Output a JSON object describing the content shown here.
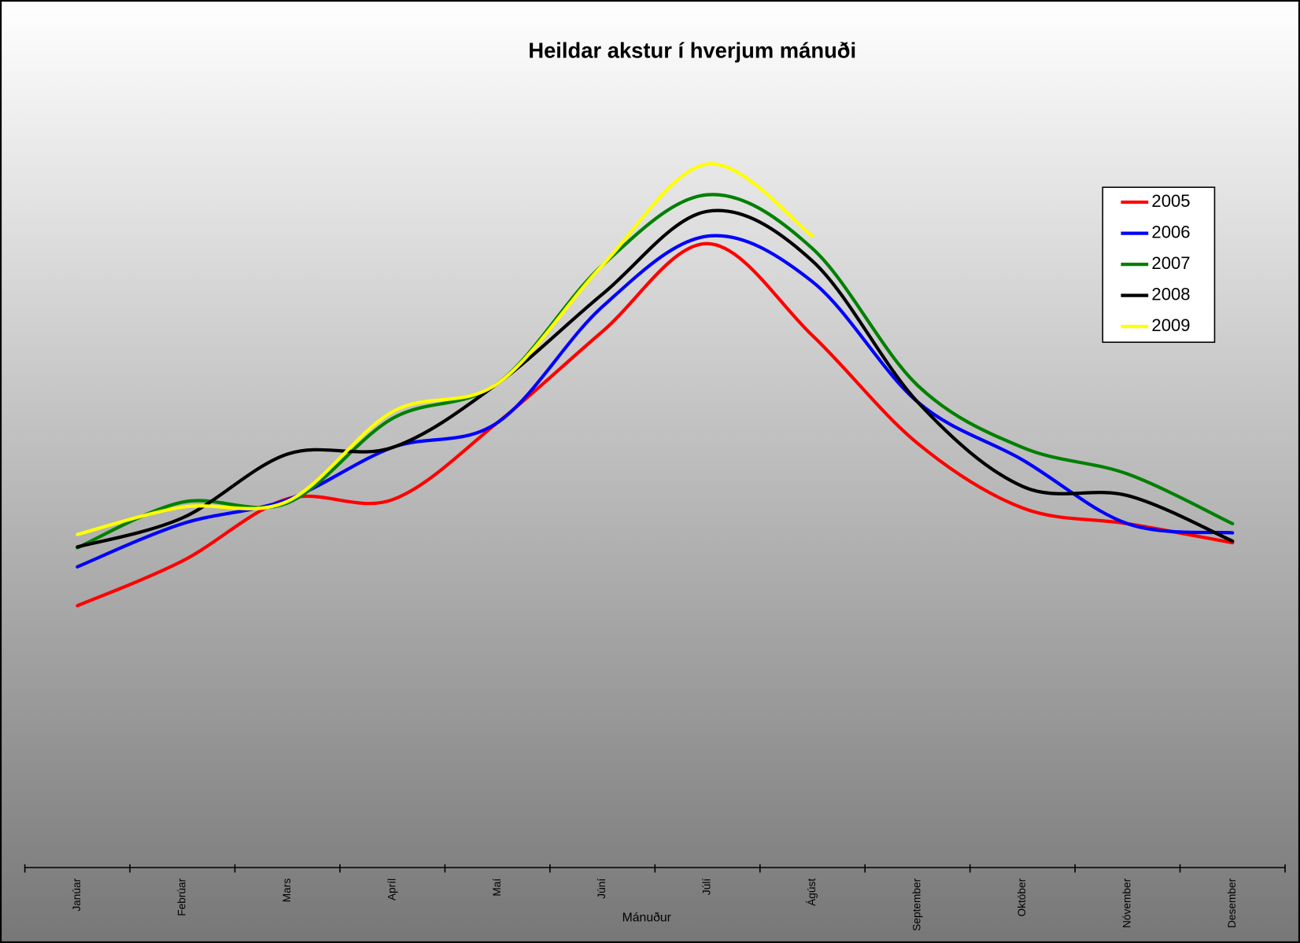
{
  "chart_data": {
    "type": "line",
    "title": "Heildar akstur í hverjum mánuði",
    "x_label": "Mánuður",
    "categories": [
      "Janúar",
      "Febrúar",
      "Mars",
      "Apríl",
      "Maí",
      "Júní",
      "Júlí",
      "Ágúst",
      "September",
      "Október",
      "Nóvember",
      "Desember"
    ],
    "series": [
      {
        "name": "2005",
        "color": "#ff0000",
        "values": [
          316,
          370,
          445,
          444,
          537,
          647,
          753,
          642,
          512,
          434,
          415,
          392
        ]
      },
      {
        "name": "2006",
        "color": "#0000ff",
        "values": [
          363,
          415,
          444,
          507,
          537,
          677,
          762,
          707,
          562,
          492,
          415,
          404
        ]
      },
      {
        "name": "2007",
        "color": "#008000",
        "values": [
          386,
          441,
          440,
          542,
          584,
          727,
          812,
          747,
          582,
          507,
          475,
          415
        ]
      },
      {
        "name": "2008",
        "color": "#000000",
        "values": [
          387,
          422,
          499,
          507,
          584,
          692,
          792,
          732,
          562,
          460,
          449,
          394
        ]
      },
      {
        "name": "2009",
        "color": "#ffff00",
        "values": [
          402,
          435,
          442,
          550,
          584,
          727,
          849,
          762,
          null,
          null,
          null,
          null
        ]
      }
    ],
    "ylim": [
      0,
      1000
    ],
    "legend": "right"
  }
}
